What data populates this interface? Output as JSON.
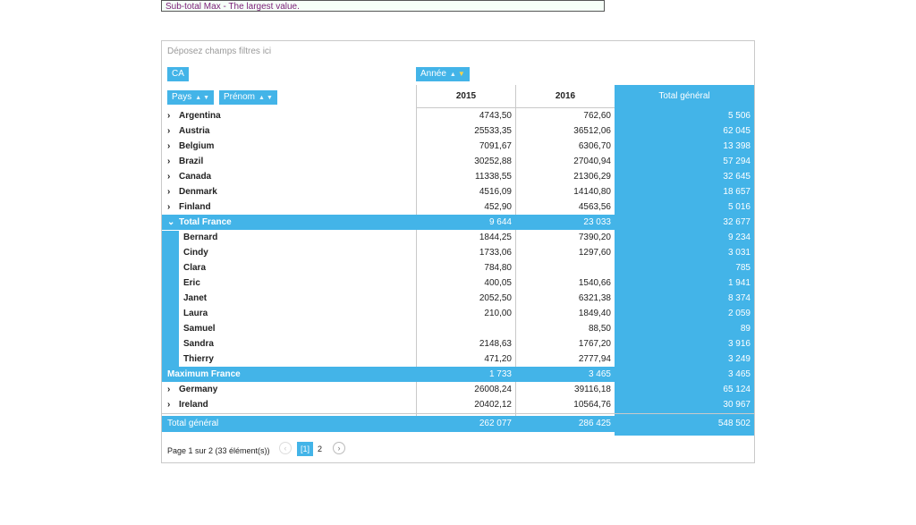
{
  "caption": "Sub-total Max - The largest value.",
  "filter_zone": "Déposez champs filtres ici",
  "chips": {
    "data_field": "CA",
    "column_field": "Année",
    "row_field_1": "Pays",
    "row_field_2": "Prénom"
  },
  "headers": {
    "y2015": "2015",
    "y2016": "2016",
    "total": "Total général"
  },
  "rows": [
    {
      "label": "Argentina",
      "v2015": "4743,50",
      "v2016": "762,60",
      "total": "5 506"
    },
    {
      "label": "Austria",
      "v2015": "25533,35",
      "v2016": "36512,06",
      "total": "62 045"
    },
    {
      "label": "Belgium",
      "v2015": "7091,67",
      "v2016": "6306,70",
      "total": "13 398"
    },
    {
      "label": "Brazil",
      "v2015": "30252,88",
      "v2016": "27040,94",
      "total": "57 294"
    },
    {
      "label": "Canada",
      "v2015": "11338,55",
      "v2016": "21306,29",
      "total": "32 645"
    },
    {
      "label": "Denmark",
      "v2015": "4516,09",
      "v2016": "14140,80",
      "total": "18 657"
    },
    {
      "label": "Finland",
      "v2015": "452,90",
      "v2016": "4563,56",
      "total": "5 016"
    },
    {
      "label": "Total France",
      "v2015": "9 644",
      "v2016": "23 033",
      "total": "32 677"
    },
    {
      "label": "Bernard",
      "v2015": "1844,25",
      "v2016": "7390,20",
      "total": "9 234"
    },
    {
      "label": "Cindy",
      "v2015": "1733,06",
      "v2016": "1297,60",
      "total": "3 031"
    },
    {
      "label": "Clara",
      "v2015": "784,80",
      "v2016": "",
      "total": "785"
    },
    {
      "label": "Eric",
      "v2015": "400,05",
      "v2016": "1540,66",
      "total": "1 941"
    },
    {
      "label": "Janet",
      "v2015": "2052,50",
      "v2016": "6321,38",
      "total": "8 374"
    },
    {
      "label": "Laura",
      "v2015": "210,00",
      "v2016": "1849,40",
      "total": "2 059"
    },
    {
      "label": "Samuel",
      "v2015": "",
      "v2016": "88,50",
      "total": "89"
    },
    {
      "label": "Sandra",
      "v2015": "2148,63",
      "v2016": "1767,20",
      "total": "3 916"
    },
    {
      "label": "Thierry",
      "v2015": "471,20",
      "v2016": "2777,94",
      "total": "3 249"
    },
    {
      "label": "Maximum France",
      "v2015": "1 733",
      "v2016": "3 465",
      "total": "3 465"
    },
    {
      "label": "Germany",
      "v2015": "26008,24",
      "v2016": "39116,18",
      "total": "65 124"
    },
    {
      "label": "Ireland",
      "v2015": "20402,12",
      "v2016": "10564,76",
      "total": "30 967"
    },
    {
      "label": "Total général",
      "v2015": "262 077",
      "v2016": "286 425",
      "total": "548 502"
    }
  ],
  "pager": {
    "info": "Page 1 sur 2 (33 élément(s))",
    "page1": "[1]",
    "page2": "2"
  },
  "colors": {
    "accent": "#43b4e8",
    "caption_text": "#7a1e78"
  }
}
